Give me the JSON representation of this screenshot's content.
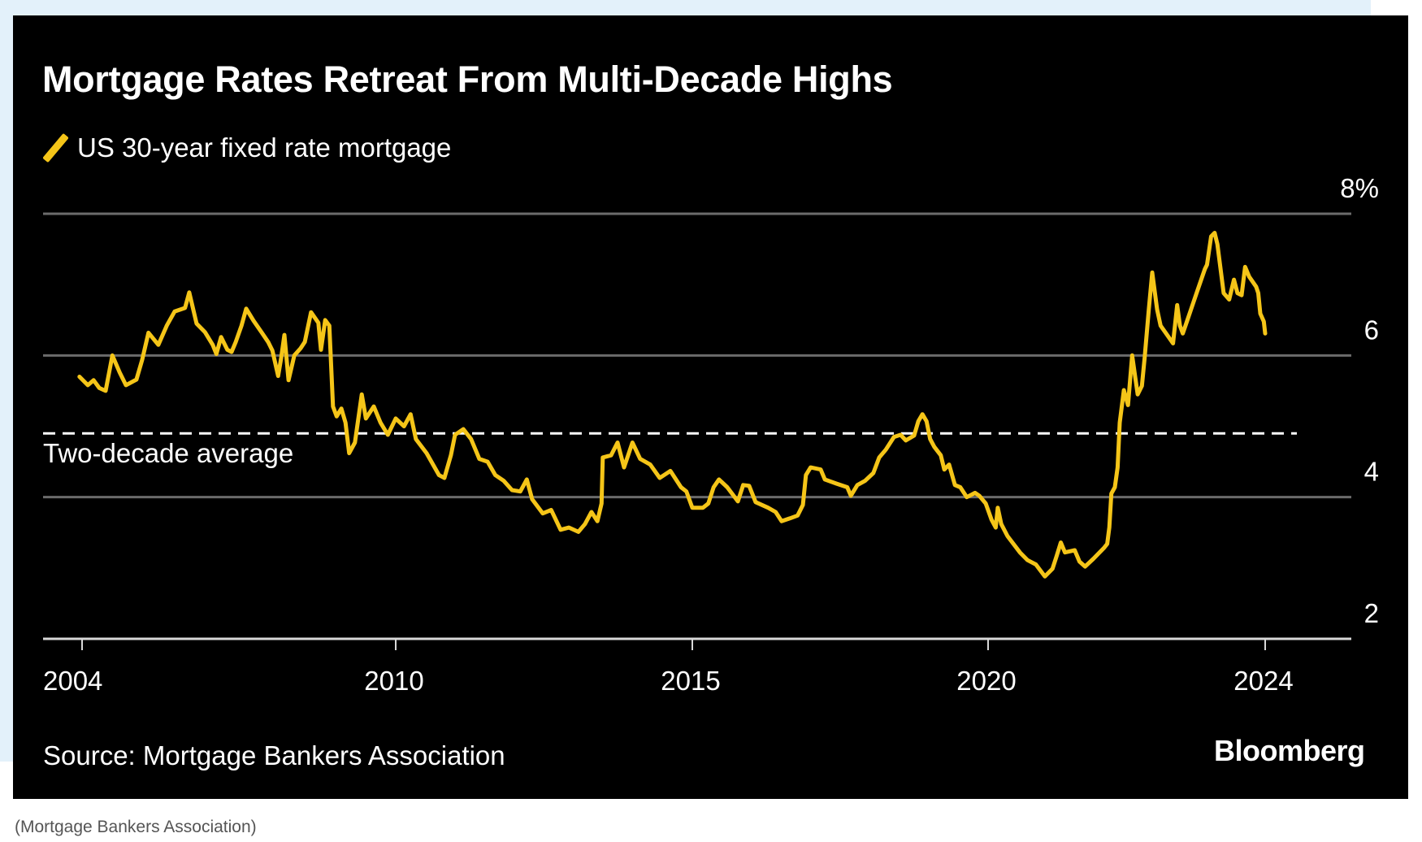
{
  "chart_data": {
    "type": "line",
    "title": "Mortgage Rates Retreat From Multi-Decade Highs",
    "legend": [
      {
        "label": "US 30-year fixed rate mortgage",
        "color": "#f5c518"
      }
    ],
    "legend_position": "top-left",
    "xlabel": "",
    "ylabel": "",
    "y_unit_suffix": "%",
    "ylim": [
      2,
      8
    ],
    "yticks": [
      2,
      4,
      6,
      8
    ],
    "ytick_labels": [
      "2",
      "4",
      "6",
      "8%"
    ],
    "y_axis_side": "right",
    "xlim": [
      2004,
      2024
    ],
    "xticks": [
      2004,
      2010,
      2015,
      2020,
      2024
    ],
    "xtick_labels": [
      "2004",
      "2010",
      "2015",
      "2020",
      "2024"
    ],
    "grid": true,
    "reference_line": {
      "label": "Two-decade average",
      "value": 4.9,
      "style": "dashed"
    },
    "series": [
      {
        "name": "US 30-year fixed rate mortgage",
        "color": "#f5c518",
        "points": [
          [
            2003.95,
            5.7
          ],
          [
            2004.11,
            5.58
          ],
          [
            2004.22,
            5.65
          ],
          [
            2004.33,
            5.54
          ],
          [
            2004.45,
            5.5
          ],
          [
            2004.58,
            6.0
          ],
          [
            2004.72,
            5.76
          ],
          [
            2004.84,
            5.58
          ],
          [
            2005.04,
            5.66
          ],
          [
            2005.15,
            5.94
          ],
          [
            2005.27,
            6.32
          ],
          [
            2005.46,
            6.15
          ],
          [
            2005.62,
            6.42
          ],
          [
            2005.77,
            6.62
          ],
          [
            2005.97,
            6.67
          ],
          [
            2006.05,
            6.89
          ],
          [
            2006.19,
            6.45
          ],
          [
            2006.35,
            6.33
          ],
          [
            2006.5,
            6.15
          ],
          [
            2006.57,
            6.02
          ],
          [
            2006.66,
            6.26
          ],
          [
            2006.78,
            6.08
          ],
          [
            2006.86,
            6.05
          ],
          [
            2006.94,
            6.19
          ],
          [
            2007.05,
            6.42
          ],
          [
            2007.14,
            6.66
          ],
          [
            2007.28,
            6.49
          ],
          [
            2007.44,
            6.32
          ],
          [
            2007.56,
            6.19
          ],
          [
            2007.64,
            6.07
          ],
          [
            2007.75,
            5.71
          ],
          [
            2007.81,
            5.97
          ],
          [
            2007.87,
            6.29
          ],
          [
            2007.95,
            5.65
          ],
          [
            2008.06,
            6.0
          ],
          [
            2008.18,
            6.1
          ],
          [
            2008.26,
            6.19
          ],
          [
            2008.38,
            6.61
          ],
          [
            2008.52,
            6.46
          ],
          [
            2008.57,
            6.08
          ],
          [
            2008.65,
            6.5
          ],
          [
            2008.73,
            6.42
          ],
          [
            2008.8,
            5.28
          ],
          [
            2008.87,
            5.14
          ],
          [
            2008.96,
            5.25
          ],
          [
            2009.04,
            5.05
          ],
          [
            2009.11,
            4.62
          ],
          [
            2009.22,
            4.77
          ],
          [
            2009.35,
            5.45
          ],
          [
            2009.43,
            5.11
          ],
          [
            2009.58,
            5.28
          ],
          [
            2009.71,
            5.05
          ],
          [
            2009.85,
            4.88
          ],
          [
            2010.0,
            5.11
          ],
          [
            2010.14,
            5.0
          ],
          [
            2010.25,
            5.17
          ],
          [
            2010.34,
            4.82
          ],
          [
            2010.52,
            4.62
          ],
          [
            2010.73,
            4.31
          ],
          [
            2010.82,
            4.27
          ],
          [
            2010.93,
            4.59
          ],
          [
            2011.0,
            4.88
          ],
          [
            2011.14,
            4.96
          ],
          [
            2011.27,
            4.82
          ],
          [
            2011.41,
            4.54
          ],
          [
            2011.55,
            4.5
          ],
          [
            2011.68,
            4.31
          ],
          [
            2011.82,
            4.23
          ],
          [
            2011.96,
            4.1
          ],
          [
            2012.1,
            4.08
          ],
          [
            2012.21,
            4.25
          ],
          [
            2012.3,
            3.97
          ],
          [
            2012.48,
            3.77
          ],
          [
            2012.62,
            3.82
          ],
          [
            2012.78,
            3.54
          ],
          [
            2012.92,
            3.57
          ],
          [
            2013.08,
            3.51
          ],
          [
            2013.19,
            3.62
          ],
          [
            2013.3,
            3.79
          ],
          [
            2013.4,
            3.66
          ],
          [
            2013.47,
            3.91
          ],
          [
            2013.49,
            4.56
          ],
          [
            2013.63,
            4.59
          ],
          [
            2013.74,
            4.77
          ],
          [
            2013.85,
            4.42
          ],
          [
            2013.99,
            4.77
          ],
          [
            2014.12,
            4.54
          ],
          [
            2014.29,
            4.46
          ],
          [
            2014.45,
            4.27
          ],
          [
            2014.63,
            4.37
          ],
          [
            2014.81,
            4.14
          ],
          [
            2014.9,
            4.08
          ],
          [
            2015.0,
            3.85
          ],
          [
            2015.18,
            3.85
          ],
          [
            2015.27,
            3.91
          ],
          [
            2015.36,
            4.14
          ],
          [
            2015.45,
            4.25
          ],
          [
            2015.59,
            4.14
          ],
          [
            2015.77,
            3.94
          ],
          [
            2015.86,
            4.17
          ],
          [
            2015.96,
            4.16
          ],
          [
            2016.07,
            3.93
          ],
          [
            2016.28,
            3.85
          ],
          [
            2016.41,
            3.79
          ],
          [
            2016.51,
            3.66
          ],
          [
            2016.65,
            3.7
          ],
          [
            2016.78,
            3.74
          ],
          [
            2016.87,
            3.89
          ],
          [
            2016.92,
            4.31
          ],
          [
            2017.0,
            4.42
          ],
          [
            2017.17,
            4.39
          ],
          [
            2017.24,
            4.25
          ],
          [
            2017.44,
            4.19
          ],
          [
            2017.62,
            4.14
          ],
          [
            2017.68,
            4.02
          ],
          [
            2017.79,
            4.17
          ],
          [
            2017.92,
            4.23
          ],
          [
            2018.06,
            4.34
          ],
          [
            2018.16,
            4.56
          ],
          [
            2018.27,
            4.67
          ],
          [
            2018.41,
            4.85
          ],
          [
            2018.52,
            4.88
          ],
          [
            2018.61,
            4.8
          ],
          [
            2018.75,
            4.87
          ],
          [
            2018.82,
            5.07
          ],
          [
            2018.89,
            5.17
          ],
          [
            2018.96,
            5.07
          ],
          [
            2019.02,
            4.82
          ],
          [
            2019.09,
            4.71
          ],
          [
            2019.2,
            4.59
          ],
          [
            2019.26,
            4.39
          ],
          [
            2019.34,
            4.46
          ],
          [
            2019.44,
            4.17
          ],
          [
            2019.53,
            4.14
          ],
          [
            2019.64,
            4.0
          ],
          [
            2019.78,
            4.06
          ],
          [
            2019.85,
            4.02
          ],
          [
            2019.96,
            3.91
          ],
          [
            2020.05,
            3.68
          ],
          [
            2020.11,
            3.57
          ],
          [
            2020.14,
            3.85
          ],
          [
            2020.19,
            3.62
          ],
          [
            2020.28,
            3.45
          ],
          [
            2020.46,
            3.22
          ],
          [
            2020.57,
            3.11
          ],
          [
            2020.69,
            3.05
          ],
          [
            2020.82,
            2.88
          ],
          [
            2020.93,
            2.99
          ],
          [
            2020.99,
            3.17
          ],
          [
            2021.05,
            3.36
          ],
          [
            2021.11,
            3.22
          ],
          [
            2021.25,
            3.25
          ],
          [
            2021.32,
            3.09
          ],
          [
            2021.4,
            3.02
          ],
          [
            2021.52,
            3.13
          ],
          [
            2021.67,
            3.28
          ],
          [
            2021.72,
            3.34
          ],
          [
            2021.75,
            3.57
          ],
          [
            2021.78,
            4.05
          ],
          [
            2021.83,
            4.14
          ],
          [
            2021.87,
            4.42
          ],
          [
            2021.9,
            5.05
          ],
          [
            2021.96,
            5.51
          ],
          [
            2022.02,
            5.3
          ],
          [
            2022.08,
            6.0
          ],
          [
            2022.16,
            5.45
          ],
          [
            2022.22,
            5.57
          ],
          [
            2022.26,
            5.97
          ],
          [
            2022.32,
            6.65
          ],
          [
            2022.37,
            7.17
          ],
          [
            2022.44,
            6.65
          ],
          [
            2022.49,
            6.42
          ],
          [
            2022.57,
            6.31
          ],
          [
            2022.67,
            6.17
          ],
          [
            2022.73,
            6.71
          ],
          [
            2022.77,
            6.42
          ],
          [
            2022.81,
            6.31
          ],
          [
            2022.87,
            6.48
          ],
          [
            2023.01,
            6.88
          ],
          [
            2023.13,
            7.22
          ],
          [
            2023.16,
            7.28
          ],
          [
            2023.22,
            7.68
          ],
          [
            2023.27,
            7.73
          ],
          [
            2023.31,
            7.57
          ],
          [
            2023.4,
            6.88
          ],
          [
            2023.48,
            6.79
          ],
          [
            2023.55,
            7.07
          ],
          [
            2023.6,
            6.88
          ],
          [
            2023.66,
            6.85
          ],
          [
            2023.71,
            7.25
          ],
          [
            2023.77,
            7.11
          ],
          [
            2023.87,
            6.97
          ],
          [
            2023.9,
            6.88
          ],
          [
            2023.93,
            6.59
          ],
          [
            2023.98,
            6.48
          ],
          [
            2024.0,
            6.31
          ]
        ]
      }
    ],
    "source": "Source: Mortgage Bankers Association",
    "brand": "Bloomberg"
  },
  "caption": "(Mortgage Bankers Association)"
}
